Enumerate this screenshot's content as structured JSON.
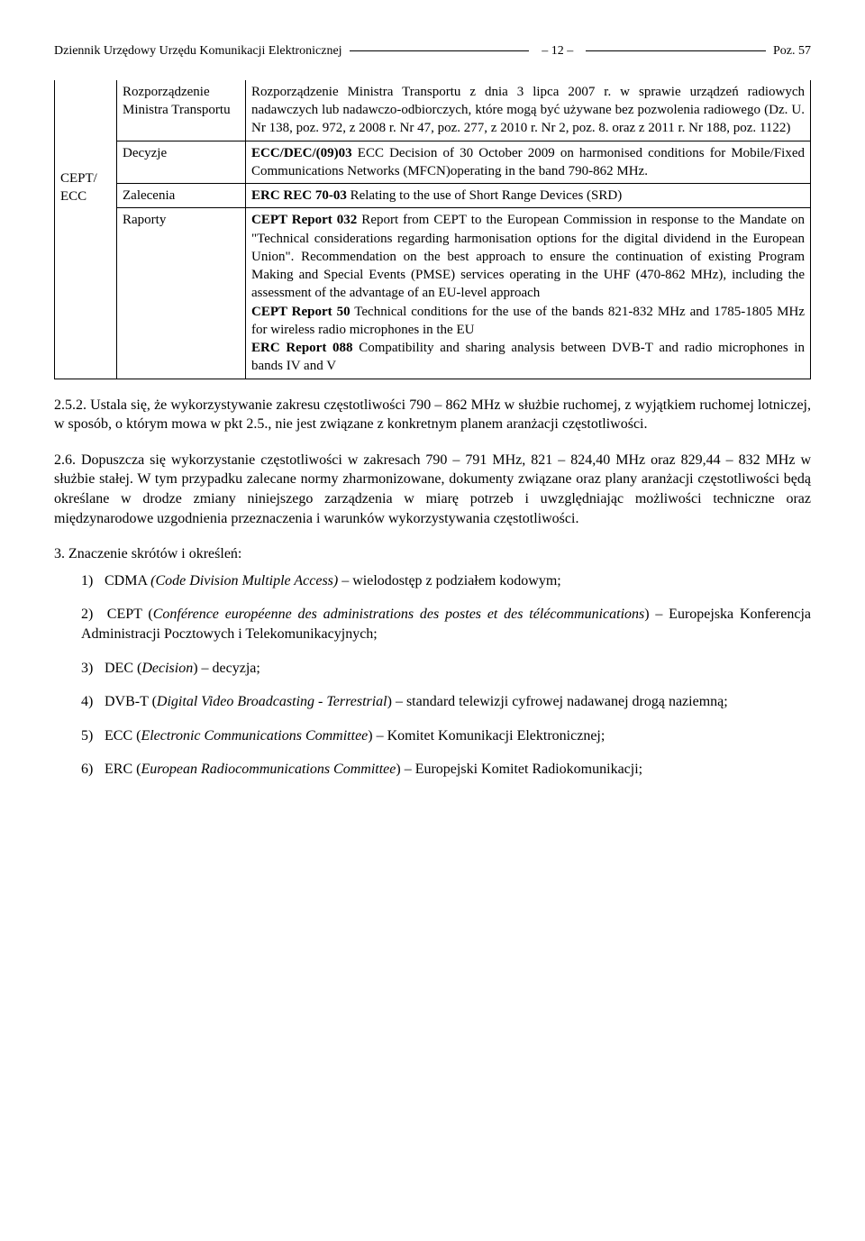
{
  "header": {
    "journal": "Dziennik Urzędowy Urzędu Komunikacji Elektronicznej",
    "page": "– 12 –",
    "poz": "Poz. 57"
  },
  "table": {
    "rows": [
      {
        "c1": "",
        "c2": "Rozporządzenie Ministra Transportu",
        "c3": "Rozporządzenie Ministra Transportu z dnia 3 lipca 2007 r. w sprawie urządzeń radiowych nadawczych lub nadawczo-odbiorczych, które mogą być używane bez pozwolenia radiowego (Dz. U. Nr 138, poz. 972, z 2008 r. Nr 47, poz. 277, z 2010 r. Nr 2, poz. 8. oraz z 2011 r. Nr 188, poz. 1122)"
      },
      {
        "c1": "CEPT/ ECC",
        "c2": "Decyzje",
        "c3_html": "<span class='bold'>ECC/DEC/(09)03</span> ECC Decision of 30 October 2009 on harmonised conditions for Mobile/Fixed Communications Networks (MFCN)operating in the band 790-862 MHz."
      },
      {
        "c1": "",
        "c2": "Zalecenia",
        "c3_html": "<span class='bold'>ERC REC 70-03</span> Relating to the use of Short Range Devices (SRD)"
      },
      {
        "c1": "",
        "c2": "Raporty",
        "c3_html": "<span class='bold'>CEPT Report 032</span> Report from CEPT to the European Commission in response to the Mandate on \"Technical considerations regarding harmonisation options for the digital dividend in the European Union\". Recommendation on the best approach to ensure the continuation of existing Program Making and Special Events (PMSE) services operating in the UHF (470-862 MHz), including the assessment of the advantage of an EU-level approach<br><span class='bold'>CEPT Report 50</span> Technical conditions for the use of the bands 821-832 MHz and 1785-1805 MHz for wireless radio microphones in the EU<br><span class='bold'>ERC Report 088</span> Compatibility and sharing analysis between DVB-T and radio microphones in bands IV and V"
      }
    ]
  },
  "paragraphs": {
    "p252": "2.5.2. Ustala się, że wykorzystywanie zakresu częstotliwości 790 – 862 MHz w służbie ruchomej, z wyjątkiem ruchomej lotniczej, w sposób, o którym mowa w pkt 2.5., nie jest związane z konkretnym planem aranżacji częstotliwości.",
    "p26": "2.6. Dopuszcza się wykorzystanie częstotliwości w zakresach 790 – 791 MHz, 821 – 824,40 MHz oraz 829,44 – 832 MHz w służbie stałej. W tym przypadku zalecane normy zharmonizowane, dokumenty związane oraz plany aranżacji częstotliwości będą określane w drodze zmiany niniejszego zarządzenia w miarę potrzeb i uwzględniając możliwości techniczne oraz międzynarodowe uzgodnienia przeznaczenia i warunków wykorzystywania częstotliwości.",
    "p3": "3. Znaczenie skrótów i określeń:"
  },
  "defs": [
    {
      "n": "1)",
      "html": "CDMA <i>(Code Division Multiple Access)</i> – wielodostęp z podziałem kodowym;"
    },
    {
      "n": "2)",
      "html": "CEPT (<i>Conférence européenne des administrations des postes et des télécommunications</i>) – Europejska Konferencja Administracji Pocztowych i Telekomunikacyjnych;"
    },
    {
      "n": "3)",
      "html": "DEC (<i>Decision</i>) – decyzja;"
    },
    {
      "n": "4)",
      "html": "DVB-T (<i>Digital Video Broadcasting - Terrestrial</i>) – standard telewizji cyfrowej nadawanej drogą naziemną;"
    },
    {
      "n": "5)",
      "html": "ECC (<i>Electronic Communications Committee</i>) – Komitet Komunikacji Elektronicznej;"
    },
    {
      "n": "6)",
      "html": "ERC (<i>European Radiocommunications Committee</i>) – Europejski Komitet Radiokomunikacji;"
    }
  ]
}
